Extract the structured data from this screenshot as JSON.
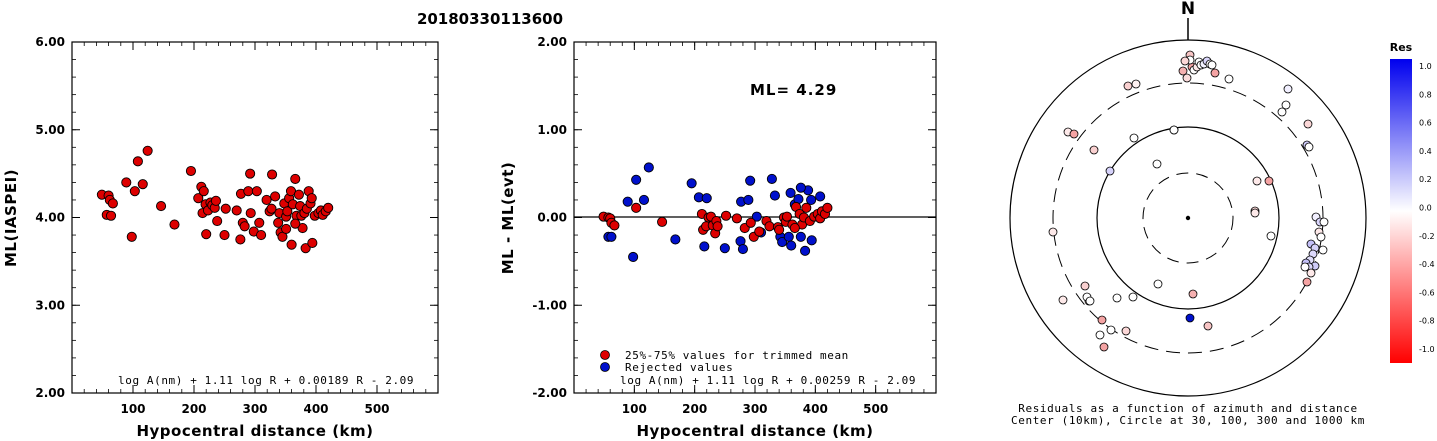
{
  "title": "20180330113600",
  "colors": {
    "used": "#dd0000",
    "rejected": "#0010cc"
  },
  "chart_data": [
    {
      "type": "scatter",
      "xlabel": "Hypocentral distance (km)",
      "ylabel": "ML(IASPEI)",
      "xlim": [
        0,
        600
      ],
      "ylim": [
        2.0,
        6.0
      ],
      "xticks": [
        "100",
        "200",
        "300",
        "400",
        "500"
      ],
      "yticks": [
        "2.00",
        "3.00",
        "4.00",
        "5.00",
        "6.00"
      ],
      "formula": "log A(nm) + 1.11 log R + 0.00189 R - 2.09",
      "points": [
        [
          49,
          4.26
        ],
        [
          57,
          4.03
        ],
        [
          60,
          4.25
        ],
        [
          62,
          4.2
        ],
        [
          64,
          4.02
        ],
        [
          67,
          4.16
        ],
        [
          89,
          4.4
        ],
        [
          98,
          3.78
        ],
        [
          103,
          4.3
        ],
        [
          108,
          4.64
        ],
        [
          116,
          4.38
        ],
        [
          124,
          4.76
        ],
        [
          146,
          4.13
        ],
        [
          168,
          3.92
        ],
        [
          195,
          4.53
        ],
        [
          207,
          4.22
        ],
        [
          212,
          4.35
        ],
        [
          214,
          4.05
        ],
        [
          216,
          4.3
        ],
        [
          219,
          4.15
        ],
        [
          220,
          3.81
        ],
        [
          223,
          4.08
        ],
        [
          227,
          4.17
        ],
        [
          230,
          4.14
        ],
        [
          234,
          4.11
        ],
        [
          236,
          4.19
        ],
        [
          238,
          3.96
        ],
        [
          250,
          3.8
        ],
        [
          252,
          4.1
        ],
        [
          270,
          4.08
        ],
        [
          276,
          3.75
        ],
        [
          277,
          4.27
        ],
        [
          280,
          3.94
        ],
        [
          283,
          3.9
        ],
        [
          289,
          4.3
        ],
        [
          292,
          4.5
        ],
        [
          293,
          4.05
        ],
        [
          298,
          3.84
        ],
        [
          303,
          4.3
        ],
        [
          307,
          3.94
        ],
        [
          310,
          3.8
        ],
        [
          319,
          4.2
        ],
        [
          324,
          4.07
        ],
        [
          328,
          4.49
        ],
        [
          333,
          4.24
        ],
        [
          338,
          3.94
        ],
        [
          340,
          4.05
        ],
        [
          342,
          3.83
        ],
        [
          345,
          3.78
        ],
        [
          348,
          4.16
        ],
        [
          351,
          4.01
        ],
        [
          353,
          4.07
        ],
        [
          356,
          4.22
        ],
        [
          359,
          4.3
        ],
        [
          360,
          3.69
        ],
        [
          362,
          4.15
        ],
        [
          366,
          4.44
        ],
        [
          368,
          4.02
        ],
        [
          372,
          4.26
        ],
        [
          374,
          4.13
        ],
        [
          376,
          4.02
        ],
        [
          378,
          3.88
        ],
        [
          381,
          4.05
        ],
        [
          383,
          3.65
        ],
        [
          385,
          4.1
        ],
        [
          388,
          4.3
        ],
        [
          391,
          4.16
        ],
        [
          393,
          4.22
        ],
        [
          398,
          4.02
        ],
        [
          404,
          4.05
        ],
        [
          408,
          4.08
        ],
        [
          411,
          4.03
        ],
        [
          416,
          4.07
        ],
        [
          420,
          4.11
        ],
        [
          394,
          3.71
        ],
        [
          366,
          3.93
        ],
        [
          351,
          3.87
        ],
        [
          327,
          4.1
        ]
      ]
    },
    {
      "type": "scatter",
      "xlabel": "Hypocentral distance (km)",
      "ylabel": "ML - ML(evt)",
      "xlim": [
        0,
        600
      ],
      "ylim": [
        -2.0,
        2.0
      ],
      "xticks": [
        "100",
        "200",
        "300",
        "400",
        "500"
      ],
      "yticks": [
        "-2.00",
        "-1.00",
        "0.00",
        "1.00",
        "2.00"
      ],
      "annotation": "ML= 4.29",
      "formula": "log A(nm) + 1.11 log R + 0.00259 R - 2.09",
      "legend": [
        "25%-75% values for trimmed mean",
        "Rejected values"
      ],
      "points_used": [
        [
          49,
          0.01
        ],
        [
          57,
          0.0
        ],
        [
          60,
          -0.01
        ],
        [
          62,
          -0.06
        ],
        [
          67,
          -0.09
        ],
        [
          103,
          0.11
        ],
        [
          146,
          -0.05
        ],
        [
          212,
          0.04
        ],
        [
          214,
          -0.14
        ],
        [
          219,
          -0.1
        ],
        [
          223,
          0.0
        ],
        [
          227,
          0.01
        ],
        [
          230,
          -0.09
        ],
        [
          234,
          -0.18
        ],
        [
          236,
          -0.04
        ],
        [
          238,
          -0.1
        ],
        [
          252,
          0.02
        ],
        [
          270,
          -0.01
        ],
        [
          283,
          -0.12
        ],
        [
          293,
          -0.06
        ],
        [
          298,
          -0.22
        ],
        [
          307,
          -0.16
        ],
        [
          319,
          -0.04
        ],
        [
          324,
          -0.1
        ],
        [
          338,
          -0.11
        ],
        [
          340,
          -0.14
        ],
        [
          348,
          0.0
        ],
        [
          351,
          -0.05
        ],
        [
          353,
          0.01
        ],
        [
          362,
          -0.08
        ],
        [
          368,
          0.12
        ],
        [
          374,
          0.04
        ],
        [
          378,
          -0.08
        ],
        [
          381,
          0.0
        ],
        [
          385,
          0.11
        ],
        [
          391,
          -0.04
        ],
        [
          398,
          0.01
        ],
        [
          404,
          0.04
        ],
        [
          408,
          -0.01
        ],
        [
          411,
          0.07
        ],
        [
          416,
          0.04
        ],
        [
          420,
          0.11
        ],
        [
          366,
          -0.12
        ]
      ],
      "points_rejected": [
        [
          57,
          -0.22
        ],
        [
          62,
          -0.22
        ],
        [
          89,
          0.18
        ],
        [
          98,
          -0.45
        ],
        [
          103,
          0.43
        ],
        [
          116,
          0.2
        ],
        [
          124,
          0.57
        ],
        [
          168,
          -0.25
        ],
        [
          195,
          0.39
        ],
        [
          207,
          0.23
        ],
        [
          216,
          -0.33
        ],
        [
          220,
          0.22
        ],
        [
          250,
          -0.35
        ],
        [
          276,
          -0.27
        ],
        [
          277,
          0.18
        ],
        [
          280,
          -0.36
        ],
        [
          289,
          0.2
        ],
        [
          292,
          0.42
        ],
        [
          303,
          0.01
        ],
        [
          310,
          -0.17
        ],
        [
          328,
          0.44
        ],
        [
          333,
          0.25
        ],
        [
          342,
          -0.22
        ],
        [
          345,
          -0.28
        ],
        [
          356,
          -0.22
        ],
        [
          359,
          0.28
        ],
        [
          360,
          -0.32
        ],
        [
          366,
          0.15
        ],
        [
          372,
          0.21
        ],
        [
          376,
          -0.22
        ],
        [
          383,
          -0.38
        ],
        [
          388,
          0.31
        ],
        [
          393,
          0.2
        ],
        [
          408,
          0.24
        ],
        [
          394,
          -0.26
        ],
        [
          376,
          0.34
        ]
      ]
    }
  ],
  "polar": {
    "north_label": "N",
    "caption_line1": "Residuals as a function of azimuth and distance",
    "caption_line2": "Center (10km), Circle at 30, 100, 300 and 1000 km",
    "stations": [
      [
        2,
        -163,
        "#f7c4c4"
      ],
      [
        4,
        -151,
        "#f4a3a3"
      ],
      [
        6,
        -148,
        "#ffffff"
      ],
      [
        -5,
        -147,
        "#f5b0b0"
      ],
      [
        -1,
        -140,
        "#fbdcdc"
      ],
      [
        2,
        -158,
        "#ffffff"
      ],
      [
        9,
        -151,
        "#fde9e9"
      ],
      [
        11,
        -156,
        "#ffffff"
      ],
      [
        -3,
        -157,
        "#fbd7d7"
      ],
      [
        13,
        -153,
        "#ffffff"
      ],
      [
        16,
        -154,
        "#f2f2ff"
      ],
      [
        19,
        -157,
        "#dad6fb"
      ],
      [
        22,
        -154,
        "#ffffff"
      ],
      [
        24,
        -153,
        "#ffffff"
      ],
      [
        27,
        -145,
        "#f4a3a3"
      ],
      [
        41,
        -139,
        "#ffffff"
      ],
      [
        -52,
        -134,
        "#fef1f1"
      ],
      [
        -60,
        -132,
        "#f9d0d0"
      ],
      [
        100,
        -129,
        "#f2f0ff"
      ],
      [
        98,
        -113,
        "#ffffff"
      ],
      [
        94,
        -106,
        "#ffffff"
      ],
      [
        120,
        -94,
        "#fbd7d7"
      ],
      [
        119,
        -73,
        "#cfcbf9"
      ],
      [
        121,
        -71,
        "#ffffff"
      ],
      [
        -14,
        -88,
        "#ffffff"
      ],
      [
        -120,
        -86,
        "#fde9e9"
      ],
      [
        -114,
        -84,
        "#f4a3a3"
      ],
      [
        -31,
        -54,
        "#ffffff"
      ],
      [
        -78,
        -47,
        "#d6d2fa"
      ],
      [
        -94,
        -68,
        "#f9d0d0"
      ],
      [
        69,
        -37,
        "#fde9e9"
      ],
      [
        81,
        -37,
        "#f4a3a3"
      ],
      [
        67,
        -7,
        "#fbd7d7"
      ],
      [
        67,
        -5,
        "#fde9e9"
      ],
      [
        128,
        -1,
        "#f2f0ff"
      ],
      [
        132,
        4,
        "#dad6fb"
      ],
      [
        136,
        4,
        "#ffffff"
      ],
      [
        131,
        14,
        "#fde9e9"
      ],
      [
        133,
        19,
        "#ffffff"
      ],
      [
        123,
        26,
        "#c4c0f8"
      ],
      [
        127,
        30,
        "#d6d2fa"
      ],
      [
        135,
        32,
        "#ffffff"
      ],
      [
        125,
        36,
        "#dcd8fb"
      ],
      [
        122,
        42,
        "#e0ddfb"
      ],
      [
        118,
        45,
        "#c4c0f8"
      ],
      [
        127,
        48,
        "#cfcbf9"
      ],
      [
        121,
        49,
        "#dad6fb"
      ],
      [
        117,
        49,
        "#ffffff"
      ],
      [
        123,
        55,
        "#fde9e9"
      ],
      [
        119,
        64,
        "#f4a3a3"
      ],
      [
        83,
        18,
        "#ffffff"
      ],
      [
        -135,
        14,
        "#fde9e9"
      ],
      [
        -103,
        68,
        "#f9d0d0"
      ],
      [
        -99,
        83,
        "#fbd7d7"
      ],
      [
        -71,
        80,
        "#ffffff"
      ],
      [
        -55,
        79,
        "#ffffff"
      ],
      [
        -62,
        113,
        "#fbd7d7"
      ],
      [
        -86,
        102,
        "#f4a3a3"
      ],
      [
        -77,
        112,
        "#ffffff"
      ],
      [
        -88,
        117,
        "#ffffff"
      ],
      [
        -84,
        129,
        "#f4a3a3"
      ],
      [
        -30,
        66,
        "#ffffff"
      ],
      [
        5,
        76,
        "#f5b0b0"
      ],
      [
        2,
        100,
        "#0010cc"
      ],
      [
        20,
        108,
        "#f7c4c4"
      ],
      [
        -101,
        79,
        "#ffffff"
      ],
      [
        -98,
        83,
        "#ffffff"
      ],
      [
        -54,
        -80,
        "#ffffff"
      ],
      [
        -14,
        -88,
        "#ffffff"
      ],
      [
        -125,
        82,
        "#fde9e9"
      ]
    ]
  },
  "colorbar": {
    "title": "Res",
    "labels": [
      "1.0",
      "0.8",
      "0.6",
      "0.4",
      "0.2",
      "0.0",
      "-0.2",
      "-0.4",
      "-0.6",
      "-0.8",
      "-1.0"
    ]
  }
}
